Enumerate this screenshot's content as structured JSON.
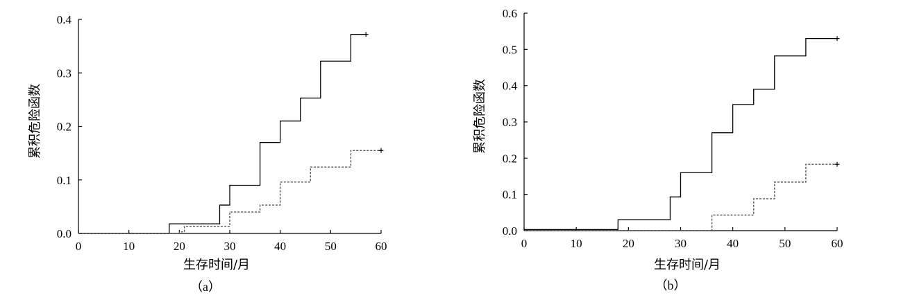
{
  "chart_data": [
    {
      "type": "line",
      "step": true,
      "panel_label": "（a）",
      "xlabel": "生存时间/月",
      "ylabel": "累积危险函数",
      "xlim": [
        0,
        60
      ],
      "ylim": [
        0,
        0.4
      ],
      "xticks": [
        0,
        10,
        20,
        30,
        40,
        50,
        60
      ],
      "yticks": [
        "0.0",
        "0.1",
        "0.2",
        "0.3",
        "0.4"
      ],
      "yticks_values": [
        0,
        0.1,
        0.2,
        0.3,
        0.4
      ],
      "grid": false,
      "series": [
        {
          "style": "solid",
          "x": [
            0,
            18,
            28,
            30,
            36,
            40,
            44,
            48,
            54,
            57
          ],
          "y": [
            0,
            0.018,
            0.053,
            0.09,
            0.17,
            0.21,
            0.253,
            0.322,
            0.372,
            0.372
          ],
          "censor_x": 57
        },
        {
          "style": "dashed",
          "x": [
            0,
            20,
            21,
            30,
            36,
            40,
            46,
            54,
            60
          ],
          "y": [
            0,
            0.003,
            0.013,
            0.04,
            0.053,
            0.096,
            0.124,
            0.155,
            0.155
          ],
          "censor_x": 60
        }
      ]
    },
    {
      "type": "line",
      "step": true,
      "panel_label": "（b）",
      "xlabel": "生存时间/月",
      "ylabel": "累积危险函数",
      "xlim": [
        0,
        60
      ],
      "ylim": [
        0,
        0.6
      ],
      "xticks": [
        0,
        10,
        20,
        30,
        40,
        50,
        60
      ],
      "yticks": [
        "0.0",
        "0.1",
        "0.2",
        "0.3",
        "0.4",
        "0.5",
        "0.6"
      ],
      "yticks_values": [
        0,
        0.1,
        0.2,
        0.3,
        0.4,
        0.5,
        0.6
      ],
      "grid": false,
      "series": [
        {
          "style": "solid",
          "x": [
            0,
            18,
            28,
            30,
            36,
            40,
            44,
            48,
            54,
            60
          ],
          "y": [
            0.003,
            0.03,
            0.093,
            0.16,
            0.27,
            0.348,
            0.39,
            0.482,
            0.53,
            0.53
          ],
          "censor_x": 60
        },
        {
          "style": "dashed",
          "x": [
            0,
            36,
            44,
            48,
            54,
            60
          ],
          "y": [
            0,
            0.043,
            0.088,
            0.134,
            0.183,
            0.183
          ],
          "censor_x": 60
        }
      ]
    }
  ]
}
